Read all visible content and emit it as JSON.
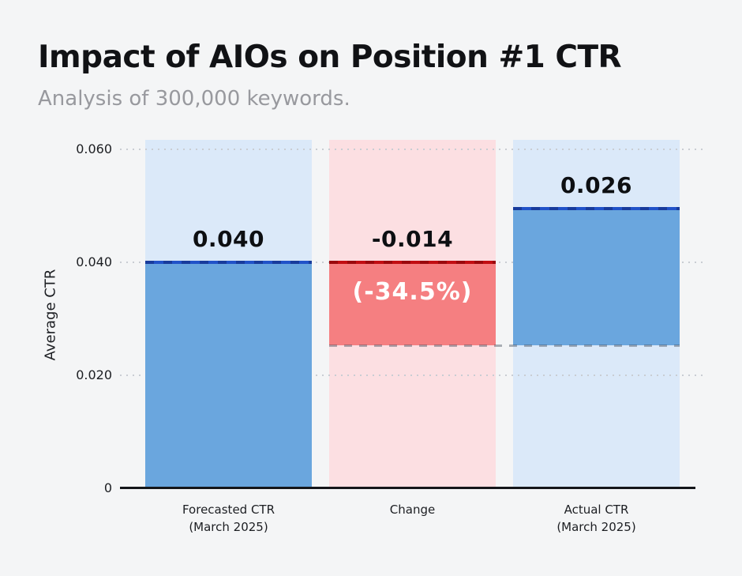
{
  "header": {
    "title": "Impact of AIOs on Position #1 CTR",
    "subtitle": "Analysis of 300,000 keywords."
  },
  "colors": {
    "page_bg": "#f4f5f6",
    "title_text": "#111215",
    "subtitle_text": "#98999e",
    "axis_text": "#1c1e22",
    "axis_line": "#14161a",
    "grid_dot": "#c9cdd3",
    "light_blue": "#dbe9f9",
    "solid_blue": "#6aa6de",
    "blue_line": "#2152c8",
    "light_pink": "#fcdfe2",
    "solid_red": "#f57f81",
    "red_line": "#c20d12",
    "value_text": "#0d0f12",
    "annotation_text": "#ffffff",
    "dash_color": "rgba(55,65,81,0.40)"
  },
  "chart_data": {
    "type": "bar",
    "title": "Impact of AIOs on Position #1 CTR",
    "subtitle": "Analysis of 300,000 keywords.",
    "xlabel": "",
    "ylabel": "Average CTR",
    "categories": [
      "Forecasted CTR (March 2025)",
      "Change",
      "Actual CTR (March 2025)"
    ],
    "values": [
      0.04,
      -0.014,
      0.026
    ],
    "ylim": [
      0,
      0.0617
    ],
    "grid": "dotted-horizontal",
    "legend": "none",
    "yticks": [
      {
        "value": 0,
        "label": "0",
        "grid": false
      },
      {
        "value": 0.02,
        "label": "0.020",
        "grid": true
      },
      {
        "value": 0.04,
        "label": "0.040",
        "grid": true
      },
      {
        "value": 0.06,
        "label": "0.060",
        "grid": true
      }
    ],
    "bars": [
      {
        "category_lines": [
          "Forecasted CTR",
          "(March 2025)"
        ],
        "value": 0.04,
        "value_label": "0.040",
        "value_label_y": 0.0441,
        "theme": "blue",
        "bg_span": [
          0,
          0.0617
        ],
        "solid_span": [
          0,
          0.04
        ],
        "edge_y": 0.04
      },
      {
        "category_lines": [
          "Change"
        ],
        "value": -0.014,
        "value_label": "-0.014",
        "value_label_y": 0.0441,
        "theme": "red",
        "bg_span": [
          0,
          0.0617
        ],
        "solid_span": [
          0.0253,
          0.04
        ],
        "edge_y": 0.04,
        "annotation": {
          "text": "(-34.5%)",
          "y": 0.0347
        }
      },
      {
        "category_lines": [
          "Actual CTR",
          "(March 2025)"
        ],
        "value": 0.026,
        "value_label": "0.026",
        "value_label_y": 0.0536,
        "theme": "blue",
        "bg_span": [
          0,
          0.0617
        ],
        "solid_span": [
          0.0253,
          0.0495
        ],
        "edge_y": 0.0495
      }
    ],
    "dashed_connector": {
      "y": 0.0253,
      "from_bar": 1,
      "to_bar": 2
    }
  }
}
